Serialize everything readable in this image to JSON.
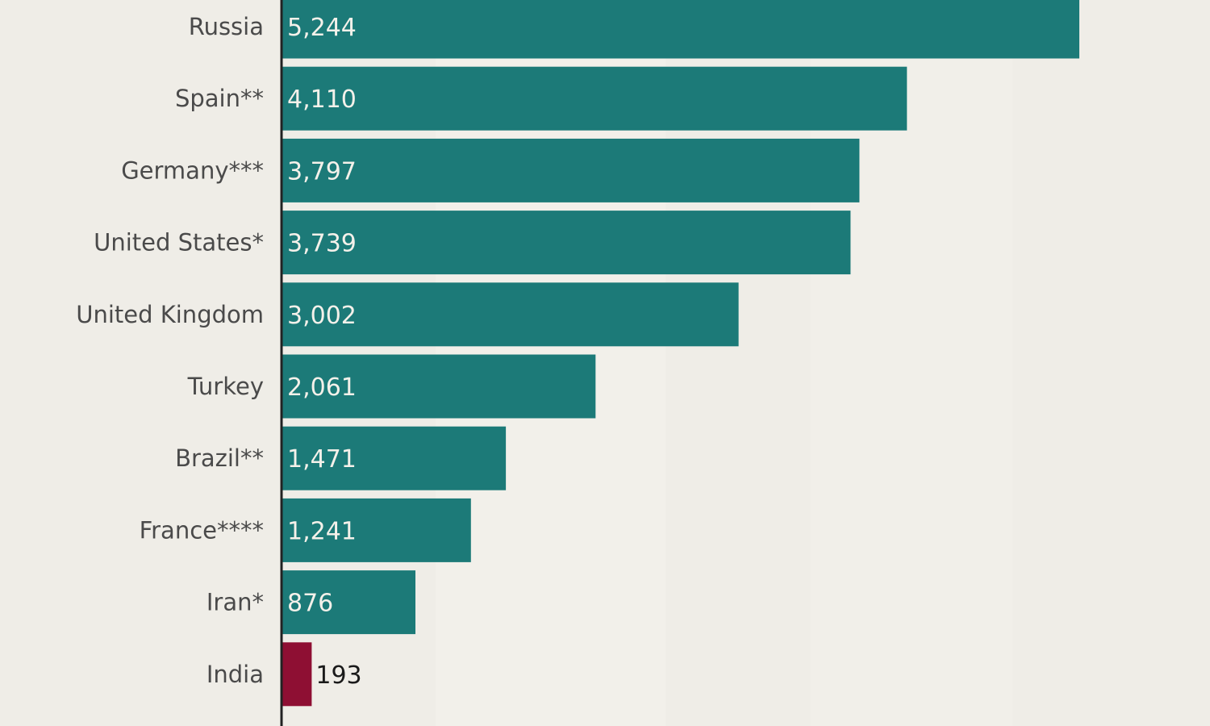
{
  "chart_data": {
    "type": "bar",
    "orientation": "horizontal",
    "categories": [
      "Russia",
      "Spain**",
      "Germany***",
      "United States*",
      "United Kingdom",
      "Turkey",
      "Brazil**",
      "France****",
      "Iran*",
      "India"
    ],
    "values": [
      5244,
      4110,
      3797,
      3739,
      3002,
      2061,
      1471,
      1241,
      876,
      193
    ],
    "value_labels": [
      "5,244",
      "4,110",
      "3,797",
      "3,739",
      "3,002",
      "2,061",
      "1,471",
      "1,241",
      "876",
      "193"
    ],
    "highlight_category": "India",
    "colors": {
      "bar": "#1c7a78",
      "highlight": "#8e0f33",
      "background": "#efede7",
      "axis": "#222222",
      "label_inside": "#f4f1ea",
      "label_outside": "#1a1a1a",
      "category_text": "#4a4a4a"
    },
    "xlim": [
      0,
      5244
    ],
    "grid": false,
    "title": "",
    "xlabel": "",
    "ylabel": ""
  }
}
